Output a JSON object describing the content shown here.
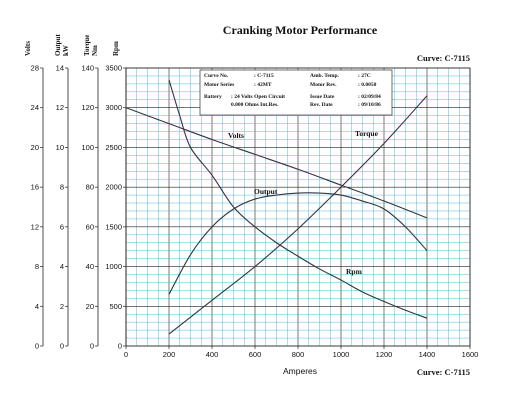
{
  "chart_data": {
    "type": "line",
    "title": "Cranking Motor Performance",
    "curve_label": "Curve: C-7115",
    "xlabel": "Amperes",
    "xlim": [
      0,
      1600
    ],
    "x_ticks": [
      "0",
      "200",
      "400",
      "600",
      "800",
      "1000",
      "1200",
      "1400",
      "1600"
    ],
    "grid": true,
    "axes": [
      {
        "name": "Volts",
        "unit": "",
        "ticks": [
          "0",
          "4",
          "8",
          "12",
          "16",
          "20",
          "24",
          "28"
        ],
        "range": [
          0,
          28
        ]
      },
      {
        "name": "Output",
        "unit": "kW",
        "ticks": [
          "0",
          "2",
          "4",
          "6",
          "8",
          "10",
          "12",
          "14"
        ],
        "range": [
          0,
          14
        ]
      },
      {
        "name": "Torque",
        "unit": "Nm",
        "ticks": [
          "0",
          "20",
          "40",
          "60",
          "80",
          "100",
          "120",
          "140"
        ],
        "range": [
          0,
          140
        ]
      },
      {
        "name": "Rpm",
        "unit": "",
        "ticks": [
          "0",
          "500",
          "1000",
          "1500",
          "2000",
          "2500",
          "3000",
          "3500"
        ],
        "range": [
          0,
          3500
        ]
      }
    ],
    "series": [
      {
        "name": "Volts",
        "axis": "Volts",
        "x": [
          0,
          200,
          400,
          600,
          800,
          1000,
          1200,
          1400
        ],
        "y": [
          24,
          22.4,
          20.8,
          19.3,
          17.8,
          16.2,
          14.6,
          12.9
        ]
      },
      {
        "name": "Torque",
        "axis": "Torque",
        "x": [
          200,
          400,
          600,
          800,
          1000,
          1200,
          1400
        ],
        "y": [
          6,
          23,
          40,
          59,
          80,
          102,
          126
        ]
      },
      {
        "name": "Output",
        "axis": "Output",
        "x": [
          200,
          300,
          400,
          500,
          600,
          700,
          800,
          900,
          1000,
          1100,
          1200,
          1300,
          1400
        ],
        "y": [
          2.6,
          4.6,
          6.0,
          6.9,
          7.4,
          7.6,
          7.7,
          7.7,
          7.6,
          7.3,
          6.9,
          6.0,
          4.8
        ]
      },
      {
        "name": "Rpm",
        "axis": "Rpm",
        "x": [
          200,
          250,
          300,
          400,
          500,
          600,
          700,
          800,
          900,
          1000,
          1100,
          1200,
          1300,
          1400
        ],
        "y": [
          3350,
          2900,
          2500,
          2150,
          1750,
          1500,
          1300,
          1130,
          970,
          830,
          680,
          560,
          450,
          350
        ]
      }
    ]
  },
  "info_box": {
    "rows": [
      {
        "k1": "Curve No.",
        "v1": ": C-7115",
        "k2": "Amb. Temp.",
        "v2": ": 27C"
      },
      {
        "k1": "Motor Series",
        "v1": ": 42MT",
        "k2": "Motor Rev.",
        "v2": ": 0.0050"
      },
      {
        "k1": "Battery",
        "v1": ": 24 Volts Open Circuit",
        "k2": "Issue Date",
        "v2": ": 02/09/84"
      },
      {
        "k1": "",
        "v1": "0.000 Ohms Int.Res.",
        "k2": "Rev. Date",
        "v2": ": 09/10/86"
      }
    ]
  },
  "colors": {
    "grid": "#3fb6d6",
    "curve": "#333344",
    "text": "#111111"
  }
}
